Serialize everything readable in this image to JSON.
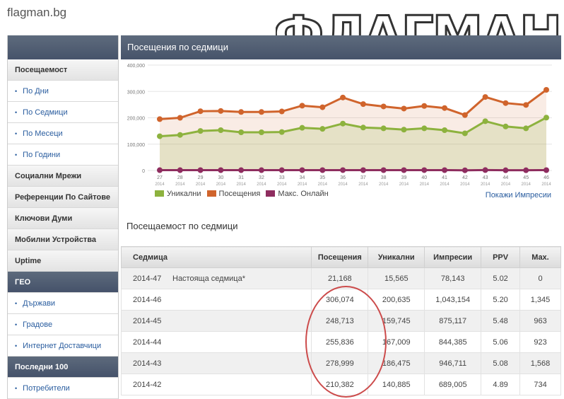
{
  "site": {
    "title": "flagman.bg",
    "logo_text": "ФЛАГМАН"
  },
  "sidebar": {
    "items": [
      {
        "label": "Посещаемост",
        "kind": "head"
      },
      {
        "label": "По Дни",
        "kind": "sub"
      },
      {
        "label": "По Седмици",
        "kind": "sub"
      },
      {
        "label": "По Месеци",
        "kind": "sub"
      },
      {
        "label": "По Години",
        "kind": "sub"
      },
      {
        "label": "Социални Мрежи",
        "kind": "head"
      },
      {
        "label": "Референции По Сайтове",
        "kind": "head"
      },
      {
        "label": "Ключови Думи",
        "kind": "head"
      },
      {
        "label": "Мобилни Устройства",
        "kind": "head"
      },
      {
        "label": "Uptime",
        "kind": "head"
      },
      {
        "label": "ГЕО",
        "kind": "dark"
      },
      {
        "label": "Държави",
        "kind": "sub"
      },
      {
        "label": "Градове",
        "kind": "sub"
      },
      {
        "label": "Интернет Доставчици",
        "kind": "sub"
      },
      {
        "label": "Последни 100",
        "kind": "dark"
      },
      {
        "label": "Потребители",
        "kind": "sub"
      }
    ]
  },
  "panel": {
    "title": "Посещения по седмици"
  },
  "chart_data": {
    "type": "area",
    "x": [
      "27",
      "28",
      "29",
      "30",
      "31",
      "32",
      "33",
      "34",
      "35",
      "36",
      "37",
      "38",
      "39",
      "40",
      "41",
      "42",
      "43",
      "44",
      "45",
      "46"
    ],
    "x_sub": "2014",
    "ylim": [
      0,
      400000
    ],
    "yticks": [
      "0",
      "100,000",
      "200,000",
      "300,000",
      "400,000"
    ],
    "series": [
      {
        "name": "Уникални",
        "color": "#8db23e",
        "values": [
          130000,
          135000,
          150000,
          153000,
          145000,
          145000,
          146000,
          162000,
          158000,
          178000,
          163000,
          160000,
          155000,
          160000,
          153000,
          141000,
          187000,
          167000,
          160000,
          200635
        ]
      },
      {
        "name": "Посещения",
        "color": "#d0642c",
        "values": [
          195000,
          200000,
          225000,
          226000,
          222000,
          222000,
          224000,
          246000,
          240000,
          277000,
          252000,
          243000,
          235000,
          245000,
          237000,
          210382,
          278999,
          255836,
          248713,
          306074
        ]
      },
      {
        "name": "Макс. Онлайн",
        "color": "#8e2d5f",
        "values": [
          1200,
          1200,
          1300,
          1300,
          1250,
          1250,
          1280,
          1400,
          1350,
          1450,
          1380,
          1360,
          1330,
          1400,
          1350,
          734,
          1568,
          923,
          963,
          1345
        ]
      }
    ],
    "grid": true,
    "legend": "bottom-left"
  },
  "show_impressions_label": "Покажи Импресии",
  "table": {
    "title": "Посещаемост по седмици",
    "headers": [
      "Седмица",
      "Посещения",
      "Уникални",
      "Импресии",
      "PPV",
      "Max."
    ],
    "rows": [
      {
        "week": "2014-47",
        "note": "Настояща седмица*",
        "visits": "21,168",
        "unique": "15,565",
        "impressions": "78,143",
        "ppv": "5.02",
        "max": "0"
      },
      {
        "week": "2014-46",
        "note": "",
        "visits": "306,074",
        "unique": "200,635",
        "impressions": "1,043,154",
        "ppv": "5.20",
        "max": "1,345"
      },
      {
        "week": "2014-45",
        "note": "",
        "visits": "248,713",
        "unique": "159,745",
        "impressions": "875,117",
        "ppv": "5.48",
        "max": "963"
      },
      {
        "week": "2014-44",
        "note": "",
        "visits": "255,836",
        "unique": "167,009",
        "impressions": "844,385",
        "ppv": "5.06",
        "max": "923"
      },
      {
        "week": "2014-43",
        "note": "",
        "visits": "278,999",
        "unique": "186,475",
        "impressions": "946,711",
        "ppv": "5.08",
        "max": "1,568"
      },
      {
        "week": "2014-42",
        "note": "",
        "visits": "210,382",
        "unique": "140,885",
        "impressions": "689,005",
        "ppv": "4.89",
        "max": "734"
      }
    ]
  }
}
